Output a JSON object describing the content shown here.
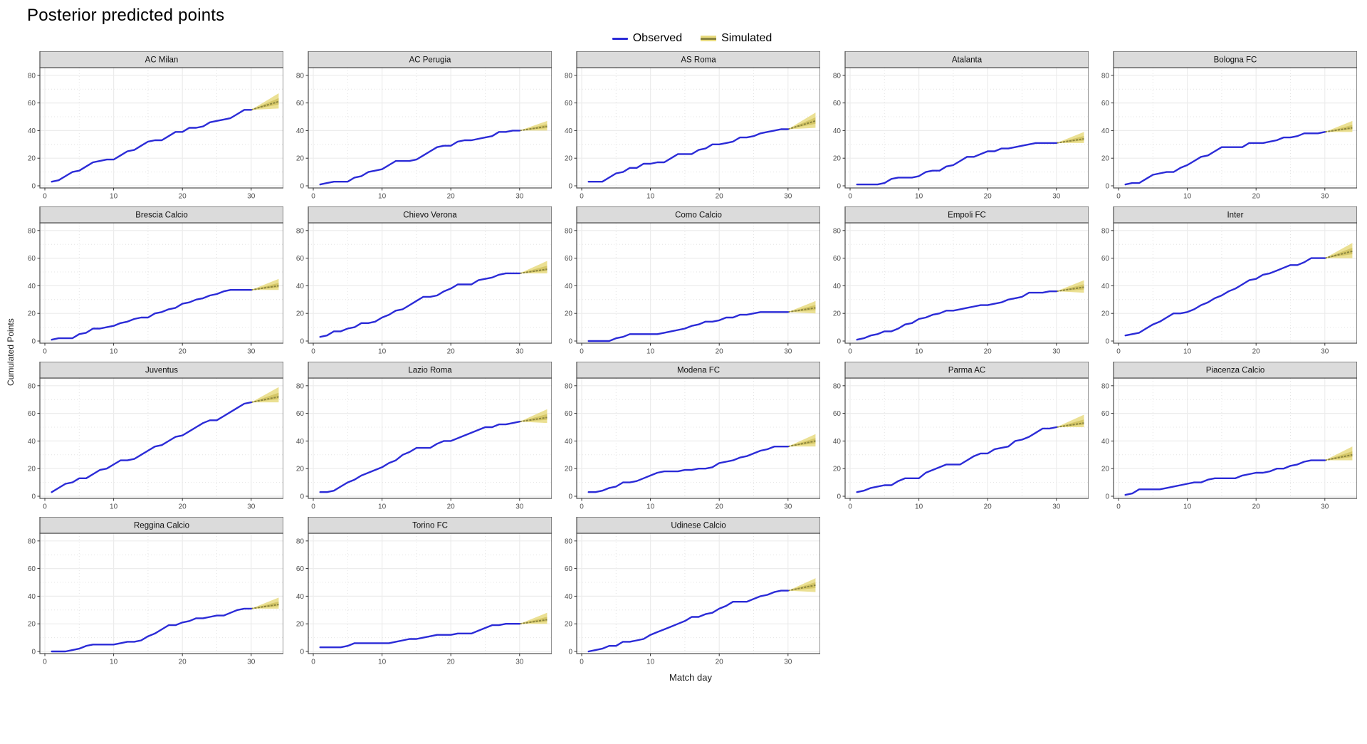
{
  "title": "Posterior predicted points",
  "legend": {
    "observed_label": "Observed",
    "simulated_label": "Simulated"
  },
  "axes": {
    "x_label": "Match day",
    "y_label": "Cumulated Points",
    "x_ticks": [
      0,
      10,
      20,
      30
    ],
    "x_minor": [
      5,
      15,
      25,
      35
    ],
    "y_ticks": [
      0,
      20,
      40,
      60,
      80
    ],
    "y_minor": [
      10,
      30,
      50,
      70
    ],
    "xlim": [
      -1.5,
      35.5
    ],
    "ylim": [
      -3,
      88
    ]
  },
  "colors": {
    "observed": "#2B2BD7",
    "sim_band": "#E8DB80",
    "sim_inner": "#CFC15E",
    "sim_median": "#8B8540",
    "grid_major": "#ECECEC",
    "grid_minor": "#E4E4E4",
    "panel_bg": "#FFFFFF",
    "panel_border": "#4D4D4D",
    "strip_bg": "#DBDBDB",
    "strip_text": "#111111",
    "axis_text": "#4D4D4D",
    "tick_mark": "#333333"
  },
  "chart_data": {
    "type": "line",
    "title": "Posterior predicted points",
    "xlabel": "Match day",
    "ylabel": "Cumulated Points",
    "x_days_observed": [
      1,
      2,
      3,
      4,
      5,
      6,
      7,
      8,
      9,
      10,
      11,
      12,
      13,
      14,
      15,
      16,
      17,
      18,
      19,
      20,
      21,
      22,
      23,
      24,
      25,
      26,
      27,
      28,
      29,
      30
    ],
    "sim_start_day": 30,
    "sim_end_day": 34,
    "legend_position": "top-center",
    "grid": true,
    "facets": [
      {
        "name": "AC Milan",
        "observed": [
          3,
          4,
          7,
          10,
          11,
          14,
          17,
          18,
          19,
          19,
          22,
          25,
          26,
          29,
          32,
          33,
          33,
          36,
          39,
          39,
          42,
          42,
          43,
          46,
          47,
          48,
          49,
          52,
          55,
          55
        ],
        "sim": {
          "low": 56,
          "high": 67,
          "median": 61
        }
      },
      {
        "name": "AC Perugia",
        "observed": [
          1,
          2,
          3,
          3,
          3,
          6,
          7,
          10,
          11,
          12,
          15,
          18,
          18,
          18,
          19,
          22,
          25,
          28,
          29,
          29,
          32,
          33,
          33,
          34,
          35,
          36,
          39,
          39,
          40,
          40
        ],
        "sim": {
          "low": 40,
          "high": 47,
          "median": 43
        }
      },
      {
        "name": "AS Roma",
        "observed": [
          3,
          3,
          3,
          6,
          9,
          10,
          13,
          13,
          16,
          16,
          17,
          17,
          20,
          23,
          23,
          23,
          26,
          27,
          30,
          30,
          31,
          32,
          35,
          35,
          36,
          38,
          39,
          40,
          41,
          41
        ],
        "sim": {
          "low": 42,
          "high": 53,
          "median": 47
        }
      },
      {
        "name": "Atalanta",
        "observed": [
          1,
          1,
          1,
          1,
          2,
          5,
          6,
          6,
          6,
          7,
          10,
          11,
          11,
          14,
          15,
          18,
          21,
          21,
          23,
          25,
          25,
          27,
          27,
          28,
          29,
          30,
          31,
          31,
          31,
          31
        ],
        "sim": {
          "low": 31,
          "high": 39,
          "median": 34
        }
      },
      {
        "name": "Bologna FC",
        "observed": [
          1,
          2,
          2,
          5,
          8,
          9,
          10,
          10,
          13,
          15,
          18,
          21,
          22,
          25,
          28,
          28,
          28,
          28,
          31,
          31,
          31,
          32,
          33,
          35,
          35,
          36,
          38,
          38,
          38,
          39
        ],
        "sim": {
          "low": 39,
          "high": 47,
          "median": 42
        }
      },
      {
        "name": "Brescia Calcio",
        "observed": [
          1,
          2,
          2,
          2,
          5,
          6,
          9,
          9,
          10,
          11,
          13,
          14,
          16,
          17,
          17,
          20,
          21,
          23,
          24,
          27,
          28,
          30,
          31,
          33,
          34,
          36,
          37,
          37,
          37,
          37
        ],
        "sim": {
          "low": 37,
          "high": 45,
          "median": 40
        }
      },
      {
        "name": "Chievo Verona",
        "observed": [
          3,
          4,
          7,
          7,
          9,
          10,
          13,
          13,
          14,
          17,
          19,
          22,
          23,
          26,
          29,
          32,
          32,
          33,
          36,
          38,
          41,
          41,
          41,
          44,
          45,
          46,
          48,
          49,
          49,
          49
        ],
        "sim": {
          "low": 49,
          "high": 58,
          "median": 52
        }
      },
      {
        "name": "Como Calcio",
        "observed": [
          0,
          0,
          0,
          0,
          2,
          3,
          5,
          5,
          5,
          5,
          5,
          6,
          7,
          8,
          9,
          11,
          12,
          14,
          14,
          15,
          17,
          17,
          19,
          19,
          20,
          21,
          21,
          21,
          21,
          21
        ],
        "sim": {
          "low": 20,
          "high": 29,
          "median": 24
        }
      },
      {
        "name": "Empoli FC",
        "observed": [
          1,
          2,
          4,
          5,
          7,
          7,
          9,
          12,
          13,
          16,
          17,
          19,
          20,
          22,
          22,
          23,
          24,
          25,
          26,
          26,
          27,
          28,
          30,
          31,
          32,
          35,
          35,
          35,
          36,
          36
        ],
        "sim": {
          "low": 35,
          "high": 44,
          "median": 39
        }
      },
      {
        "name": "Inter",
        "observed": [
          4,
          5,
          6,
          9,
          12,
          14,
          17,
          20,
          20,
          21,
          23,
          26,
          28,
          31,
          33,
          36,
          38,
          41,
          44,
          45,
          48,
          49,
          51,
          53,
          55,
          55,
          57,
          60,
          60,
          60
        ],
        "sim": {
          "low": 60,
          "high": 71,
          "median": 65
        }
      },
      {
        "name": "Juventus",
        "observed": [
          3,
          6,
          9,
          10,
          13,
          13,
          16,
          19,
          20,
          23,
          26,
          26,
          27,
          30,
          33,
          36,
          37,
          40,
          43,
          44,
          47,
          50,
          53,
          55,
          55,
          58,
          61,
          64,
          67,
          68
        ],
        "sim": {
          "low": 68,
          "high": 79,
          "median": 72
        }
      },
      {
        "name": "Lazio Roma",
        "observed": [
          3,
          3,
          4,
          7,
          10,
          12,
          15,
          17,
          19,
          21,
          24,
          26,
          30,
          32,
          35,
          35,
          35,
          38,
          40,
          40,
          42,
          44,
          46,
          48,
          50,
          50,
          52,
          52,
          53,
          54
        ],
        "sim": {
          "low": 53,
          "high": 63,
          "median": 57
        }
      },
      {
        "name": "Modena FC",
        "observed": [
          3,
          3,
          4,
          6,
          7,
          10,
          10,
          11,
          13,
          15,
          17,
          18,
          18,
          18,
          19,
          19,
          20,
          20,
          21,
          24,
          25,
          26,
          28,
          29,
          31,
          33,
          34,
          36,
          36,
          36
        ],
        "sim": {
          "low": 36,
          "high": 45,
          "median": 40
        }
      },
      {
        "name": "Parma AC",
        "observed": [
          3,
          4,
          6,
          7,
          8,
          8,
          11,
          13,
          13,
          13,
          17,
          19,
          21,
          23,
          23,
          23,
          26,
          29,
          31,
          31,
          34,
          35,
          36,
          40,
          41,
          43,
          46,
          49,
          49,
          50
        ],
        "sim": {
          "low": 50,
          "high": 59,
          "median": 53
        }
      },
      {
        "name": "Piacenza Calcio",
        "observed": [
          1,
          2,
          5,
          5,
          5,
          5,
          6,
          7,
          8,
          9,
          10,
          10,
          12,
          13,
          13,
          13,
          13,
          15,
          16,
          17,
          17,
          18,
          20,
          20,
          22,
          23,
          25,
          26,
          26,
          26
        ],
        "sim": {
          "low": 26,
          "high": 36,
          "median": 30
        }
      },
      {
        "name": "Reggina Calcio",
        "observed": [
          0,
          0,
          0,
          1,
          2,
          4,
          5,
          5,
          5,
          5,
          6,
          7,
          7,
          8,
          11,
          13,
          16,
          19,
          19,
          21,
          22,
          24,
          24,
          25,
          26,
          26,
          28,
          30,
          31,
          31
        ],
        "sim": {
          "low": 31,
          "high": 39,
          "median": 34
        }
      },
      {
        "name": "Torino FC",
        "observed": [
          3,
          3,
          3,
          3,
          4,
          6,
          6,
          6,
          6,
          6,
          6,
          7,
          8,
          9,
          9,
          10,
          11,
          12,
          12,
          12,
          13,
          13,
          13,
          15,
          17,
          19,
          19,
          20,
          20,
          20
        ],
        "sim": {
          "low": 20,
          "high": 28,
          "median": 23
        }
      },
      {
        "name": "Udinese Calcio",
        "observed": [
          0,
          1,
          2,
          4,
          4,
          7,
          7,
          8,
          9,
          12,
          14,
          16,
          18,
          20,
          22,
          25,
          25,
          27,
          28,
          31,
          33,
          36,
          36,
          36,
          38,
          40,
          41,
          43,
          44,
          44
        ],
        "sim": {
          "low": 43,
          "high": 53,
          "median": 48
        }
      }
    ],
    "facets_per_row": 5
  }
}
